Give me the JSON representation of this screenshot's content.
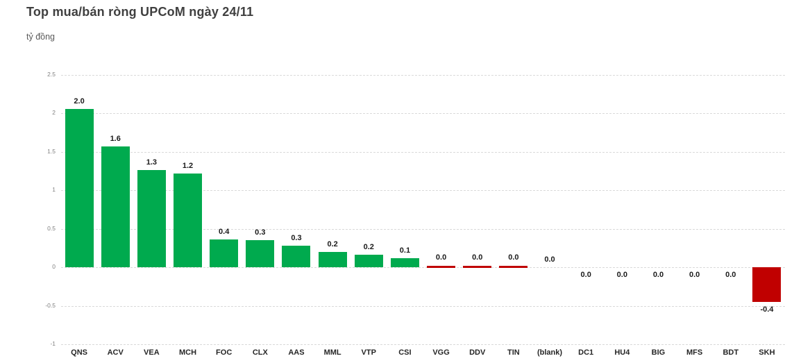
{
  "header": {
    "title": "Top mua/bán ròng UPCoM ngày 24/11",
    "subtitle": "tỷ đồng"
  },
  "colors": {
    "positive": "#00AA4E",
    "negative": "#C00000",
    "gridline": "#D9D9D9",
    "axis_text": "#808080",
    "label_text": "#1A1A1A",
    "title_text": "#404040",
    "subtitle_text": "#595959",
    "background": "#FFFFFF"
  },
  "chart_data": {
    "type": "bar",
    "title": "Top mua/bán ròng UPCoM ngày 24/11",
    "ylabel": "tỷ đồng",
    "xlabel": "",
    "ylim": [
      -1,
      2.5
    ],
    "grid": true,
    "legend": false,
    "yticks": [
      {
        "value": 2.5,
        "label": "2.5"
      },
      {
        "value": 2,
        "label": "2"
      },
      {
        "value": 1.5,
        "label": "1.5"
      },
      {
        "value": 1,
        "label": "1"
      },
      {
        "value": 0.5,
        "label": "0.5"
      },
      {
        "value": 0,
        "label": "0"
      },
      {
        "value": -0.5,
        "label": "-0.5"
      },
      {
        "value": -1,
        "label": "-1"
      }
    ],
    "bars": [
      {
        "category": "QNS",
        "value": 2.05,
        "label": "2.0",
        "bar": "green",
        "label_side": "above"
      },
      {
        "category": "ACV",
        "value": 1.57,
        "label": "1.6",
        "bar": "green",
        "label_side": "above"
      },
      {
        "category": "VEA",
        "value": 1.26,
        "label": "1.3",
        "bar": "green",
        "label_side": "above"
      },
      {
        "category": "MCH",
        "value": 1.22,
        "label": "1.2",
        "bar": "green",
        "label_side": "above"
      },
      {
        "category": "FOC",
        "value": 0.36,
        "label": "0.4",
        "bar": "green",
        "label_side": "above"
      },
      {
        "category": "CLX",
        "value": 0.35,
        "label": "0.3",
        "bar": "green",
        "label_side": "above"
      },
      {
        "category": "AAS",
        "value": 0.28,
        "label": "0.3",
        "bar": "green",
        "label_side": "above"
      },
      {
        "category": "MML",
        "value": 0.2,
        "label": "0.2",
        "bar": "green",
        "label_side": "above"
      },
      {
        "category": "VTP",
        "value": 0.16,
        "label": "0.2",
        "bar": "green",
        "label_side": "above"
      },
      {
        "category": "CSI",
        "value": 0.12,
        "label": "0.1",
        "bar": "green",
        "label_side": "above"
      },
      {
        "category": "VGG",
        "value": -0.01,
        "label": "0.0",
        "bar": "sliver",
        "label_side": "above"
      },
      {
        "category": "DDV",
        "value": -0.01,
        "label": "0.0",
        "bar": "sliver",
        "label_side": "above"
      },
      {
        "category": "TIN",
        "value": -0.01,
        "label": "0.0",
        "bar": "sliver",
        "label_side": "above"
      },
      {
        "category": "(blank)",
        "value": 0.0,
        "label": "0.0",
        "bar": "none",
        "label_side": "above"
      },
      {
        "category": "DC1",
        "value": 0.0,
        "label": "0.0",
        "bar": "none",
        "label_side": "below"
      },
      {
        "category": "HU4",
        "value": 0.0,
        "label": "0.0",
        "bar": "none",
        "label_side": "below"
      },
      {
        "category": "BIG",
        "value": 0.0,
        "label": "0.0",
        "bar": "none",
        "label_side": "below"
      },
      {
        "category": "MFS",
        "value": 0.0,
        "label": "0.0",
        "bar": "none",
        "label_side": "below"
      },
      {
        "category": "BDT",
        "value": 0.0,
        "label": "0.0",
        "bar": "none",
        "label_side": "below"
      },
      {
        "category": "SKH",
        "value": -0.45,
        "label": "-0.4",
        "bar": "red",
        "label_side": "below"
      }
    ]
  }
}
